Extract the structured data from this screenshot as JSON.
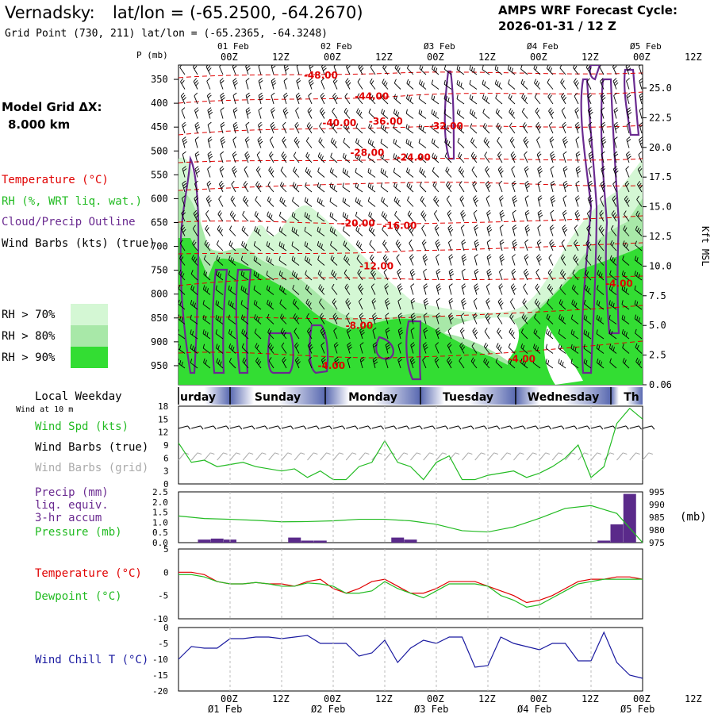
{
  "header": {
    "station": "Vernadsky:",
    "latlon": "lat/lon = (-65.2500, -64.2670)",
    "grid": "Grid Point (730, 211) lat/lon = (-65.2365, -64.3248)",
    "cycle_title": "AMPS WRF Forecast Cycle:",
    "cycle_value": "2026-01-31 / 12  Z"
  },
  "model_grid": {
    "label": "Model Grid ΔX:",
    "value": "8.000 km"
  },
  "colors": {
    "temperature": "#e00000",
    "rh": "#22bb22",
    "cloud": "#6a2a90",
    "wind": "#000000",
    "grid_barbs": "#aaaaaa",
    "precip": "#5a2a8a",
    "pressure": "#22bb22",
    "dewpoint": "#22bb22",
    "windchill": "#1a1aa0",
    "rh70": "#d4f7d4",
    "rh80": "#a8e8a8",
    "rh90": "#33dd33",
    "daybar": "#6878b8"
  },
  "time_axis": {
    "top_dates": [
      "01 Feb",
      "02 Feb",
      "Ø3 Feb",
      "Ø4 Feb",
      "Ø5 Feb"
    ],
    "bottom_dates": [
      "Ø1 Feb",
      "Ø2 Feb",
      "Ø3 Feb",
      "Ø4 Feb",
      "Ø5 Feb"
    ],
    "hours": [
      "00Z",
      "12Z",
      "00Z",
      "12Z",
      "00Z",
      "12Z",
      "00Z",
      "12Z",
      "00Z",
      "12Z"
    ]
  },
  "chart_data": [
    {
      "type": "heatmap",
      "title": "Vertical cross-section (time vs pressure)",
      "ylabel": "P (mb)",
      "ylabel_right": "Kft MSL",
      "y_ticks": [
        "350",
        "400",
        "450",
        "500",
        "550",
        "600",
        "650",
        "700",
        "750",
        "800",
        "850",
        "900",
        "950"
      ],
      "y_right_ticks": [
        "25.0",
        "22.5",
        "20.0",
        "17.5",
        "15.0",
        "12.5",
        "10.0",
        "7.5",
        "5.0",
        "2.5",
        "0.06"
      ],
      "legend": [
        "Temperature (°C)",
        "RH (%, WRT liq. wat.)",
        "Cloud/Precip Outline",
        "Wind Barbs (kts) (true)"
      ],
      "rh_legend": [
        "RH > 70%",
        "RH > 80%",
        "RH > 90%"
      ],
      "temperature_labels": [
        {
          "text": "-48.00",
          "t": 0.27,
          "p": 348
        },
        {
          "text": "-44.00",
          "t": 0.38,
          "p": 392
        },
        {
          "text": "-40.00",
          "t": 0.31,
          "p": 448
        },
        {
          "text": "-36.00",
          "t": 0.41,
          "p": 445
        },
        {
          "text": "-32.00",
          "t": 0.54,
          "p": 455
        },
        {
          "text": "-28.00",
          "t": 0.37,
          "p": 510
        },
        {
          "text": "-24.00",
          "t": 0.47,
          "p": 520
        },
        {
          "text": "-20.00",
          "t": 0.35,
          "p": 658
        },
        {
          "text": "-16.00",
          "t": 0.44,
          "p": 663
        },
        {
          "text": "-12.00",
          "t": 0.39,
          "p": 748
        },
        {
          "text": "-8.00",
          "t": 0.36,
          "p": 873
        },
        {
          "text": "-4.00",
          "t": 0.3,
          "p": 957
        },
        {
          "text": "-4.00",
          "t": 0.71,
          "p": 943
        },
        {
          "text": "-4.00",
          "t": 0.92,
          "p": 785
        }
      ]
    },
    {
      "type": "line",
      "title": "Wind",
      "legend": [
        "Wind Spd (kts)",
        "Wind Barbs (true)",
        "Wind Barbs (grid)"
      ],
      "ylim": [
        0,
        18
      ],
      "y_ticks": [
        "0",
        "3",
        "6",
        "9",
        "12",
        "15",
        "18"
      ],
      "x_hours": [
        0,
        3,
        6,
        9,
        12,
        15,
        18,
        21,
        24,
        27,
        30,
        33,
        36,
        39,
        42,
        45,
        48,
        51,
        54,
        57,
        60,
        63,
        66,
        69,
        72,
        75,
        78,
        81,
        84,
        87,
        90,
        93,
        96,
        99,
        102,
        105,
        108
      ],
      "values": [
        9.5,
        5.0,
        5.5,
        4.0,
        4.5,
        5.0,
        4.0,
        3.5,
        3.0,
        3.5,
        1.5,
        3.0,
        1.0,
        1.0,
        4.0,
        5.0,
        10.0,
        5.0,
        4.0,
        1.0,
        5.0,
        6.5,
        1.0,
        1.0,
        2.0,
        2.5,
        3.0,
        1.5,
        2.5,
        4.0,
        6.0,
        9.0,
        1.5,
        4.0,
        14.0,
        17.5,
        15.0
      ]
    },
    {
      "type": "bar",
      "title": "Precip / Pressure",
      "legend": [
        "Precip (mm)",
        "liq. equiv.",
        "3-hr accum",
        "Pressure (mb)"
      ],
      "ylim": [
        0,
        2.5
      ],
      "y_ticks": [
        "0.0",
        "0.5",
        "1.0",
        "1.5",
        "2.0",
        "2.5"
      ],
      "y2lim": [
        975,
        995
      ],
      "y2_ticks": [
        "975",
        "980",
        "985",
        "990",
        "995"
      ],
      "y2label": "(mb)",
      "precip_bars": [
        {
          "h": 6,
          "v": 0.15
        },
        {
          "h": 9,
          "v": 0.2
        },
        {
          "h": 12,
          "v": 0.15
        },
        {
          "h": 27,
          "v": 0.25
        },
        {
          "h": 30,
          "v": 0.1
        },
        {
          "h": 33,
          "v": 0.1
        },
        {
          "h": 51,
          "v": 0.25
        },
        {
          "h": 54,
          "v": 0.15
        },
        {
          "h": 99,
          "v": 0.1
        },
        {
          "h": 102,
          "v": 0.9
        },
        {
          "h": 105,
          "v": 2.4
        }
      ],
      "pressure_x_hours": [
        0,
        6,
        12,
        18,
        24,
        30,
        36,
        42,
        48,
        54,
        60,
        66,
        72,
        78,
        84,
        90,
        96,
        102,
        108
      ],
      "pressure": [
        985.5,
        984.5,
        984.2,
        983.8,
        983.2,
        983.3,
        983.6,
        984.2,
        984.2,
        983.6,
        982.2,
        979.7,
        979.2,
        981.2,
        984.6,
        988.5,
        989.6,
        986.5,
        975.0
      ]
    },
    {
      "type": "line",
      "title": "Temperature / Dewpoint",
      "legend": [
        "Temperature (°C)",
        "Dewpoint (°C)"
      ],
      "ylim": [
        -10,
        5
      ],
      "y_ticks": [
        "5",
        "0",
        "-5",
        "-10"
      ],
      "x_hours": [
        0,
        3,
        6,
        9,
        12,
        15,
        18,
        21,
        24,
        27,
        30,
        33,
        36,
        39,
        42,
        45,
        48,
        51,
        54,
        57,
        60,
        63,
        66,
        69,
        72,
        75,
        78,
        81,
        84,
        87,
        90,
        93,
        96,
        99,
        102,
        105,
        108
      ],
      "temperature": [
        0,
        0,
        -0.5,
        -2,
        -2.5,
        -2.5,
        -2.2,
        -2.5,
        -2.5,
        -3,
        -2,
        -1.5,
        -3.5,
        -4.5,
        -3.5,
        -2,
        -1.5,
        -3,
        -4.5,
        -4.5,
        -3.5,
        -2,
        -2,
        -2,
        -3,
        -4,
        -5,
        -6.5,
        -6,
        -5,
        -3.5,
        -2,
        -1.5,
        -1.5,
        -1,
        -1,
        -1.5
      ],
      "dewpoint": [
        -0.5,
        -0.5,
        -1,
        -2,
        -2.5,
        -2.5,
        -2.2,
        -2.5,
        -3,
        -3,
        -2.3,
        -2.5,
        -3,
        -4.5,
        -4.5,
        -4,
        -2,
        -3.5,
        -4.5,
        -5.5,
        -4,
        -2.5,
        -2.5,
        -2.5,
        -3,
        -5,
        -6,
        -7.5,
        -7,
        -5.5,
        -4,
        -2.5,
        -2,
        -1.5,
        -1.5,
        -1.5,
        -1.5
      ]
    },
    {
      "type": "line",
      "title": "Wind Chill",
      "legend": [
        "Wind Chill T (°C)"
      ],
      "ylim": [
        -20,
        0
      ],
      "y_ticks": [
        "0",
        "-5",
        "-10",
        "-15",
        "-20"
      ],
      "x_hours": [
        0,
        3,
        6,
        9,
        12,
        15,
        18,
        21,
        24,
        27,
        30,
        33,
        36,
        39,
        42,
        45,
        48,
        51,
        54,
        57,
        60,
        63,
        66,
        69,
        72,
        75,
        78,
        81,
        84,
        87,
        90,
        93,
        96,
        99,
        102,
        105,
        108
      ],
      "values": [
        -10,
        -6,
        -6.5,
        -6.5,
        -3.5,
        -3.5,
        -3,
        -3,
        -3.5,
        -3,
        -2.5,
        -5,
        -5,
        -5,
        -9,
        -8,
        -4,
        -11,
        -6.5,
        -4,
        -5,
        -3,
        -3,
        -12.5,
        -12,
        -3,
        -5,
        -6,
        -7,
        -5,
        -5,
        -10.5,
        -10.5,
        -1.5,
        -11,
        -15,
        -16
      ]
    }
  ],
  "weekday": {
    "label": "Local Weekday",
    "wind_note": "Wind at 10 m",
    "days": [
      "urday",
      "Sunday",
      "Monday",
      "Tuesday",
      "Wednesday",
      "Th"
    ]
  }
}
